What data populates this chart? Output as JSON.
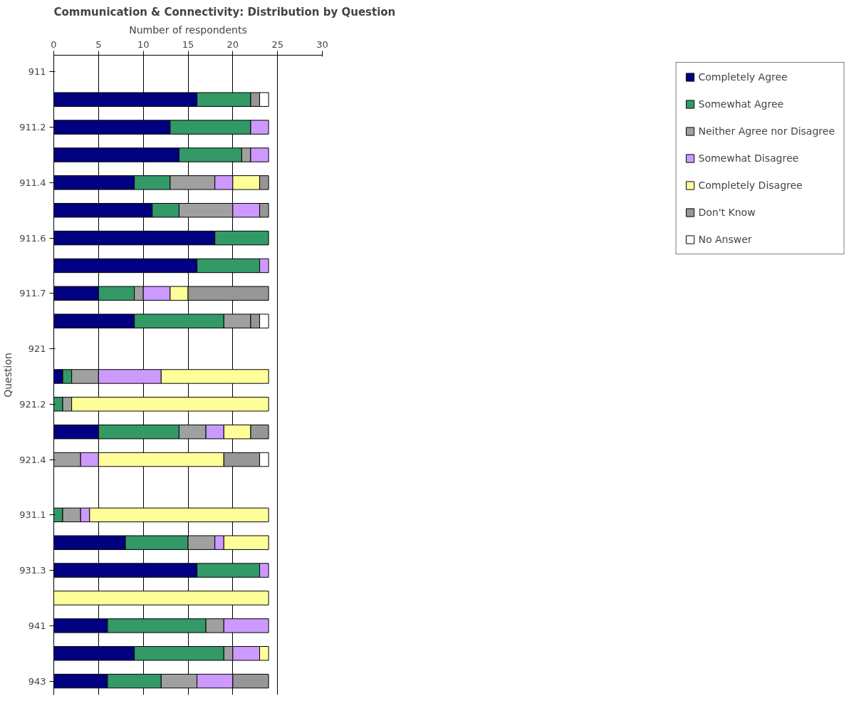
{
  "chart_data": {
    "type": "bar",
    "orientation": "horizontal",
    "stacked": true,
    "title": "Communication & Connectivity: Distribution by Question",
    "xlabel": "Number of respondents",
    "ylabel": "Question",
    "categories": [
      "911",
      null,
      "911.2",
      null,
      "911.4",
      null,
      "911.6",
      null,
      "911.7",
      null,
      "921",
      null,
      "921.2",
      null,
      "921.4",
      null,
      "931.1",
      null,
      "931.3",
      null,
      "941",
      null,
      "943"
    ],
    "xlim": [
      0,
      30
    ],
    "xticks": [
      0,
      5,
      10,
      15,
      20,
      25,
      30
    ],
    "grid": "x",
    "legend": "right",
    "series": [
      {
        "name": "Completely Agree",
        "color": "#000080",
        "values": [
          0,
          16,
          13,
          14,
          9,
          11,
          18,
          16,
          5,
          9,
          0,
          1,
          0,
          5,
          0,
          0,
          0,
          8,
          16,
          0,
          6,
          9,
          6
        ]
      },
      {
        "name": "Somewhat Agree",
        "color": "#339966",
        "values": [
          0,
          6,
          9,
          7,
          4,
          3,
          6,
          7,
          4,
          10,
          0,
          1,
          1,
          9,
          0,
          0,
          1,
          7,
          7,
          0,
          11,
          10,
          6
        ]
      },
      {
        "name": "Neither Agree nor Disagree",
        "color": "#a0a0a0",
        "values": [
          0,
          0,
          0,
          1,
          5,
          6,
          0,
          0,
          1,
          3,
          0,
          3,
          1,
          3,
          3,
          0,
          2,
          3,
          0,
          0,
          2,
          1,
          4
        ]
      },
      {
        "name": "Somewhat Disagree",
        "color": "#cc99ff",
        "values": [
          0,
          0,
          2,
          2,
          2,
          3,
          0,
          1,
          3,
          0,
          0,
          7,
          0,
          2,
          2,
          0,
          1,
          1,
          1,
          0,
          5,
          3,
          4
        ]
      },
      {
        "name": "Completely Disagree",
        "color": "#ffff99",
        "values": [
          0,
          0,
          0,
          0,
          3,
          0,
          0,
          0,
          2,
          0,
          0,
          12,
          22,
          3,
          14,
          0,
          20,
          5,
          0,
          24,
          0,
          1,
          0
        ]
      },
      {
        "name": "Don't Know",
        "color": "#969696",
        "values": [
          0,
          1,
          0,
          0,
          1,
          1,
          0,
          0,
          9,
          1,
          0,
          0,
          0,
          2,
          4,
          0,
          0,
          0,
          0,
          0,
          0,
          0,
          4
        ]
      },
      {
        "name": "No Answer",
        "color": "#ffffff",
        "values": [
          0,
          1,
          0,
          0,
          0,
          0,
          0,
          0,
          0,
          1,
          0,
          0,
          0,
          0,
          1,
          0,
          0,
          0,
          0,
          0,
          0,
          0,
          0
        ]
      }
    ]
  }
}
